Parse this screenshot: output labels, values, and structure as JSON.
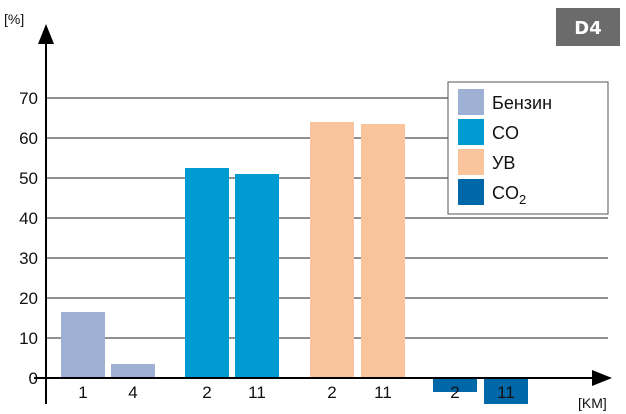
{
  "badge": "D4",
  "chart_data": {
    "type": "bar",
    "y_unit_label": "[%]",
    "x_unit_label": "[KM]",
    "ylim": [
      -10,
      70
    ],
    "yticks": [
      70,
      60,
      50,
      40,
      30,
      20,
      10,
      0
    ],
    "ytick_labels": [
      "70",
      "60",
      "50",
      "40",
      "30",
      "20",
      "10",
      "0"
    ],
    "grid": "horizontal",
    "legend_position": "top-right",
    "groups": [
      {
        "series": "Бензин",
        "categories": [
          "1",
          "4"
        ],
        "values": [
          16.5,
          3.5
        ]
      },
      {
        "series": "CO",
        "categories": [
          "2",
          "11"
        ],
        "values": [
          52.5,
          51
        ]
      },
      {
        "series": "УВ",
        "categories": [
          "2",
          "11"
        ],
        "values": [
          64,
          63.5
        ]
      },
      {
        "series": "CO2",
        "categories": [
          "2",
          "11"
        ],
        "values": [
          -3.5,
          -6.5
        ]
      }
    ],
    "series": [
      {
        "name": "Бензин",
        "color": "#9fb0d5"
      },
      {
        "name": "CO",
        "color": "#009bd0"
      },
      {
        "name": "УВ",
        "color": "#f9c49c"
      },
      {
        "name": "CO",
        "subscript": "2",
        "color": "#0068a8"
      }
    ]
  }
}
